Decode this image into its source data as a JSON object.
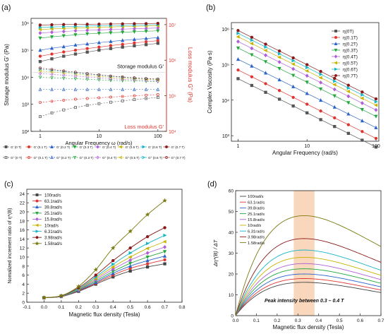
{
  "chart_data": [
    {
      "id": "a",
      "panel_label": "(a)",
      "type": "scatter",
      "log_x": true,
      "log_y": true,
      "log_y2": true,
      "xlabel": "Angular Frequency ω (rad/s)",
      "ylabel": "Storage modulus G' (Pa)",
      "y2label": "Loss modulus G'' (Pa)",
      "xlim": [
        0.7,
        140
      ],
      "ylim": [
        100,
        1500000
      ],
      "y2lim": [
        10000,
        15000000
      ],
      "xticks": [
        "1",
        "10",
        "100"
      ],
      "yticks": [
        "10²",
        "10³",
        "10⁴",
        "10⁵",
        "10⁶"
      ],
      "y2ticks": [
        "10⁴",
        "10⁵",
        "10⁶",
        "10⁷"
      ],
      "annotations": [
        "Storage modulus G′",
        "Loss modulus G′"
      ],
      "x": [
        1,
        1.58,
        2.51,
        3.98,
        6.31,
        10,
        15.8,
        25.1,
        39.8,
        63.1,
        100
      ],
      "storage": [
        {
          "name": "G' (0 T)",
          "color": "#555555",
          "marker": "square",
          "values": [
            38000,
            48000,
            60000,
            72000,
            85000,
            100000,
            115000,
            130000,
            145000,
            160000,
            180000
          ]
        },
        {
          "name": "G' (0.1 T)",
          "color": "#e0352f",
          "marker": "circle",
          "values": [
            60000,
            72000,
            86000,
            100000,
            115000,
            130000,
            148000,
            165000,
            185000,
            205000,
            225000
          ]
        },
        {
          "name": "G' (0.2 T)",
          "color": "#2b63c9",
          "marker": "triangle",
          "values": [
            100000,
            118000,
            135000,
            155000,
            170000,
            190000,
            210000,
            230000,
            250000,
            270000,
            290000
          ]
        },
        {
          "name": "G' (0.3 T)",
          "color": "#22a83a",
          "marker": "triangle-down",
          "values": [
            280000,
            310000,
            340000,
            370000,
            400000,
            420000,
            440000,
            460000,
            480000,
            500000,
            520000
          ]
        },
        {
          "name": "G' (0.4 T)",
          "color": "#b05ed8",
          "marker": "diamond",
          "values": [
            430000,
            460000,
            490000,
            520000,
            540000,
            560000,
            580000,
            600000,
            620000,
            640000,
            660000
          ]
        },
        {
          "name": "G' (0.5 T)",
          "color": "#c8b400",
          "marker": "triangle-left",
          "values": [
            580000,
            610000,
            640000,
            660000,
            680000,
            700000,
            720000,
            740000,
            760000,
            780000,
            800000
          ]
        },
        {
          "name": "G' (0.6 T)",
          "color": "#17b5c6",
          "marker": "triangle-right",
          "values": [
            700000,
            720000,
            740000,
            760000,
            780000,
            800000,
            810000,
            820000,
            840000,
            860000,
            880000
          ]
        },
        {
          "name": "G' (0.7 T)",
          "color": "#8a1a1a",
          "marker": "hexagon",
          "values": [
            850000,
            870000,
            890000,
            900000,
            910000,
            920000,
            930000,
            940000,
            950000,
            960000,
            980000
          ]
        }
      ],
      "loss": [
        {
          "name": "G'' (0 T)",
          "color": "#555555",
          "marker": "square-open",
          "values": [
            26000,
            33000,
            40000,
            47000,
            54000,
            60000,
            66000,
            72000,
            78000,
            84000,
            90000
          ]
        },
        {
          "name": "G'' (0.1 T)",
          "color": "#e0352f",
          "marker": "circle-open",
          "values": [
            65000,
            70000,
            75000,
            80000,
            84000,
            88000,
            92000,
            96000,
            100000,
            104000,
            108000
          ]
        },
        {
          "name": "G'' (0.2 T)",
          "color": "#2b63c9",
          "marker": "triangle-open",
          "values": [
            150000,
            150000,
            150000,
            150000,
            150000,
            150000,
            150000,
            150000,
            150000,
            150000,
            150000
          ]
        },
        {
          "name": "G'' (0.3 T)",
          "color": "#22a83a",
          "marker": "triangle-down-open",
          "values": [
            330000,
            320000,
            310000,
            300000,
            290000,
            280000,
            270000,
            265000,
            260000,
            255000,
            250000
          ]
        },
        {
          "name": "G'' (0.4 T)",
          "color": "#b05ed8",
          "marker": "diamond-open",
          "values": [
            420000,
            400000,
            380000,
            360000,
            340000,
            320000,
            300000,
            290000,
            280000,
            270000,
            260000
          ]
        },
        {
          "name": "G'' (0.5 T)",
          "color": "#c8b400",
          "marker": "triangle-left-open",
          "values": [
            500000,
            470000,
            440000,
            410000,
            380000,
            350000,
            330000,
            310000,
            300000,
            290000,
            280000
          ]
        },
        {
          "name": "G'' (0.6 T)",
          "color": "#17b5c6",
          "marker": "triangle-right-open",
          "values": [
            560000,
            520000,
            480000,
            440000,
            410000,
            380000,
            350000,
            330000,
            310000,
            300000,
            290000
          ]
        },
        {
          "name": "G'' (0.7 T)",
          "color": "#8a1a1a",
          "marker": "hexagon-open",
          "values": [
            600000,
            550000,
            500000,
            460000,
            420000,
            390000,
            360000,
            340000,
            320000,
            305000,
            295000
          ]
        }
      ]
    },
    {
      "id": "b",
      "panel_label": "(b)",
      "type": "scatter",
      "log_x": true,
      "log_y": true,
      "xlabel": "Angular Frequency (rad/s)",
      "ylabel": "Complex Viscosity (Pa·s)",
      "xlim": [
        0.8,
        110
      ],
      "ylim": [
        700,
        1500000
      ],
      "xticks": [
        "1",
        "10",
        "100"
      ],
      "yticks": [
        "10³",
        "10⁴",
        "10⁵",
        "10⁶"
      ],
      "x": [
        1,
        1.58,
        2.51,
        3.98,
        6.31,
        10,
        15.8,
        25.1,
        39.8,
        63.1,
        100
      ],
      "slope": -0.96,
      "series": [
        {
          "name": "η(0T)",
          "color": "#555555",
          "marker": "square",
          "v1": 40000
        },
        {
          "name": "η(0.1T)",
          "color": "#e0352f",
          "marker": "circle",
          "v1": 70000
        },
        {
          "name": "η(0.2T)",
          "color": "#2b63c9",
          "marker": "triangle",
          "v1": 140000
        },
        {
          "name": "η(0.3T)",
          "color": "#22a83a",
          "marker": "triangle-down",
          "v1": 290000
        },
        {
          "name": "η(0.4T)",
          "color": "#b05ed8",
          "marker": "diamond",
          "v1": 440000
        },
        {
          "name": "η(0.5T)",
          "color": "#c8b400",
          "marker": "triangle-left",
          "v1": 600000
        },
        {
          "name": "η(0.6T)",
          "color": "#17b5c6",
          "marker": "triangle-right",
          "v1": 750000
        },
        {
          "name": "η(0.7T)",
          "color": "#8a1a1a",
          "marker": "hexagon",
          "v1": 900000
        }
      ]
    },
    {
      "id": "c",
      "panel_label": "(c)",
      "type": "line",
      "xlabel": "Magnetic flux density (Tesla)",
      "ylabel": "Nomalized increment ratio of η*(B)",
      "xlim": [
        -0.1,
        0.8
      ],
      "ylim": [
        0,
        25
      ],
      "xticks": [
        "-0.1",
        "0.0",
        "0.1",
        "0.2",
        "0.3",
        "0.4",
        "0.5",
        "0.6",
        "0.7",
        "0.8"
      ],
      "yticks": [
        "0",
        "2",
        "4",
        "6",
        "8",
        "10",
        "12",
        "14",
        "16",
        "18",
        "20",
        "22",
        "24"
      ],
      "x": [
        0,
        0.1,
        0.2,
        0.3,
        0.4,
        0.5,
        0.6,
        0.7
      ],
      "series": [
        {
          "name": "100rad/s",
          "color": "#444444",
          "marker": "square",
          "values": [
            1,
            1.25,
            2.4,
            4.0,
            5.6,
            6.9,
            7.8,
            8.5
          ]
        },
        {
          "name": "63.1rad/s",
          "color": "#e0352f",
          "marker": "circle",
          "values": [
            1,
            1.28,
            2.5,
            4.2,
            6.0,
            7.5,
            8.5,
            9.4
          ]
        },
        {
          "name": "39.8rad/s",
          "color": "#2b63c9",
          "marker": "triangle",
          "values": [
            1,
            1.3,
            2.6,
            4.4,
            6.4,
            8.0,
            9.2,
            10.2
          ]
        },
        {
          "name": "25.1rad/s",
          "color": "#22a83a",
          "marker": "triangle-down",
          "values": [
            1,
            1.32,
            2.7,
            4.7,
            6.8,
            8.6,
            10.0,
            11.2
          ]
        },
        {
          "name": "15.8rad/s",
          "color": "#b05ed8",
          "marker": "diamond",
          "values": [
            1,
            1.34,
            2.8,
            5.0,
            7.3,
            9.3,
            10.9,
            12.2
          ]
        },
        {
          "name": "10rad/s",
          "color": "#c8b400",
          "marker": "triangle-left",
          "values": [
            1,
            1.36,
            2.9,
            5.3,
            7.8,
            10.0,
            11.9,
            13.4
          ]
        },
        {
          "name": "6.31rad/s",
          "color": "#17b5c6",
          "marker": "triangle-right",
          "values": [
            1,
            1.38,
            3.0,
            5.6,
            8.4,
            10.9,
            13.0,
            14.8
          ]
        },
        {
          "name": "3.98rad/s",
          "color": "#8a1a1a",
          "marker": "hexagon",
          "values": [
            1,
            1.4,
            3.2,
            6.0,
            9.2,
            12.0,
            14.5,
            16.5
          ]
        },
        {
          "name": "1.58rad/s",
          "color": "#7a7a10",
          "marker": "star",
          "values": [
            1,
            1.45,
            3.5,
            7.2,
            12.0,
            15.7,
            19.4,
            22.5
          ]
        }
      ]
    },
    {
      "id": "d",
      "panel_label": "(d)",
      "type": "line",
      "xlabel": "Magnetic flux density (Tesla)",
      "ylabel": "Δη*(B) / ΔT",
      "xlim": [
        0,
        0.7
      ],
      "ylim": [
        0,
        60
      ],
      "xticks": [
        "0.0",
        "0.1",
        "0.2",
        "0.3",
        "0.4",
        "0.5",
        "0.6",
        "0.7"
      ],
      "yticks": [
        "0",
        "10",
        "20",
        "30",
        "40",
        "50",
        "60"
      ],
      "highlight_range": [
        0.28,
        0.38
      ],
      "highlight_color": "#f6c9a6",
      "annotation": "Peak intensity between 0.3 – 0.4 T",
      "series": [
        {
          "name": "100rad/s",
          "color": "#444444",
          "peak": 16
        },
        {
          "name": "63.1rad/s",
          "color": "#e0352f",
          "peak": 17.8
        },
        {
          "name": "39.8rad/s",
          "color": "#2b63c9",
          "peak": 20
        },
        {
          "name": "25.1rad/s",
          "color": "#22a83a",
          "peak": 22.5
        },
        {
          "name": "15.8rad/s",
          "color": "#b05ed8",
          "peak": 25
        },
        {
          "name": "10rad/s",
          "color": "#c8b400",
          "peak": 28
        },
        {
          "name": "6.31rad/s",
          "color": "#17b5c6",
          "peak": 31.5
        },
        {
          "name": "3.98rad/s",
          "color": "#8a1a1a",
          "peak": 37
        },
        {
          "name": "1.58rad/s",
          "color": "#7a7a10",
          "peak": 48
        }
      ]
    }
  ]
}
